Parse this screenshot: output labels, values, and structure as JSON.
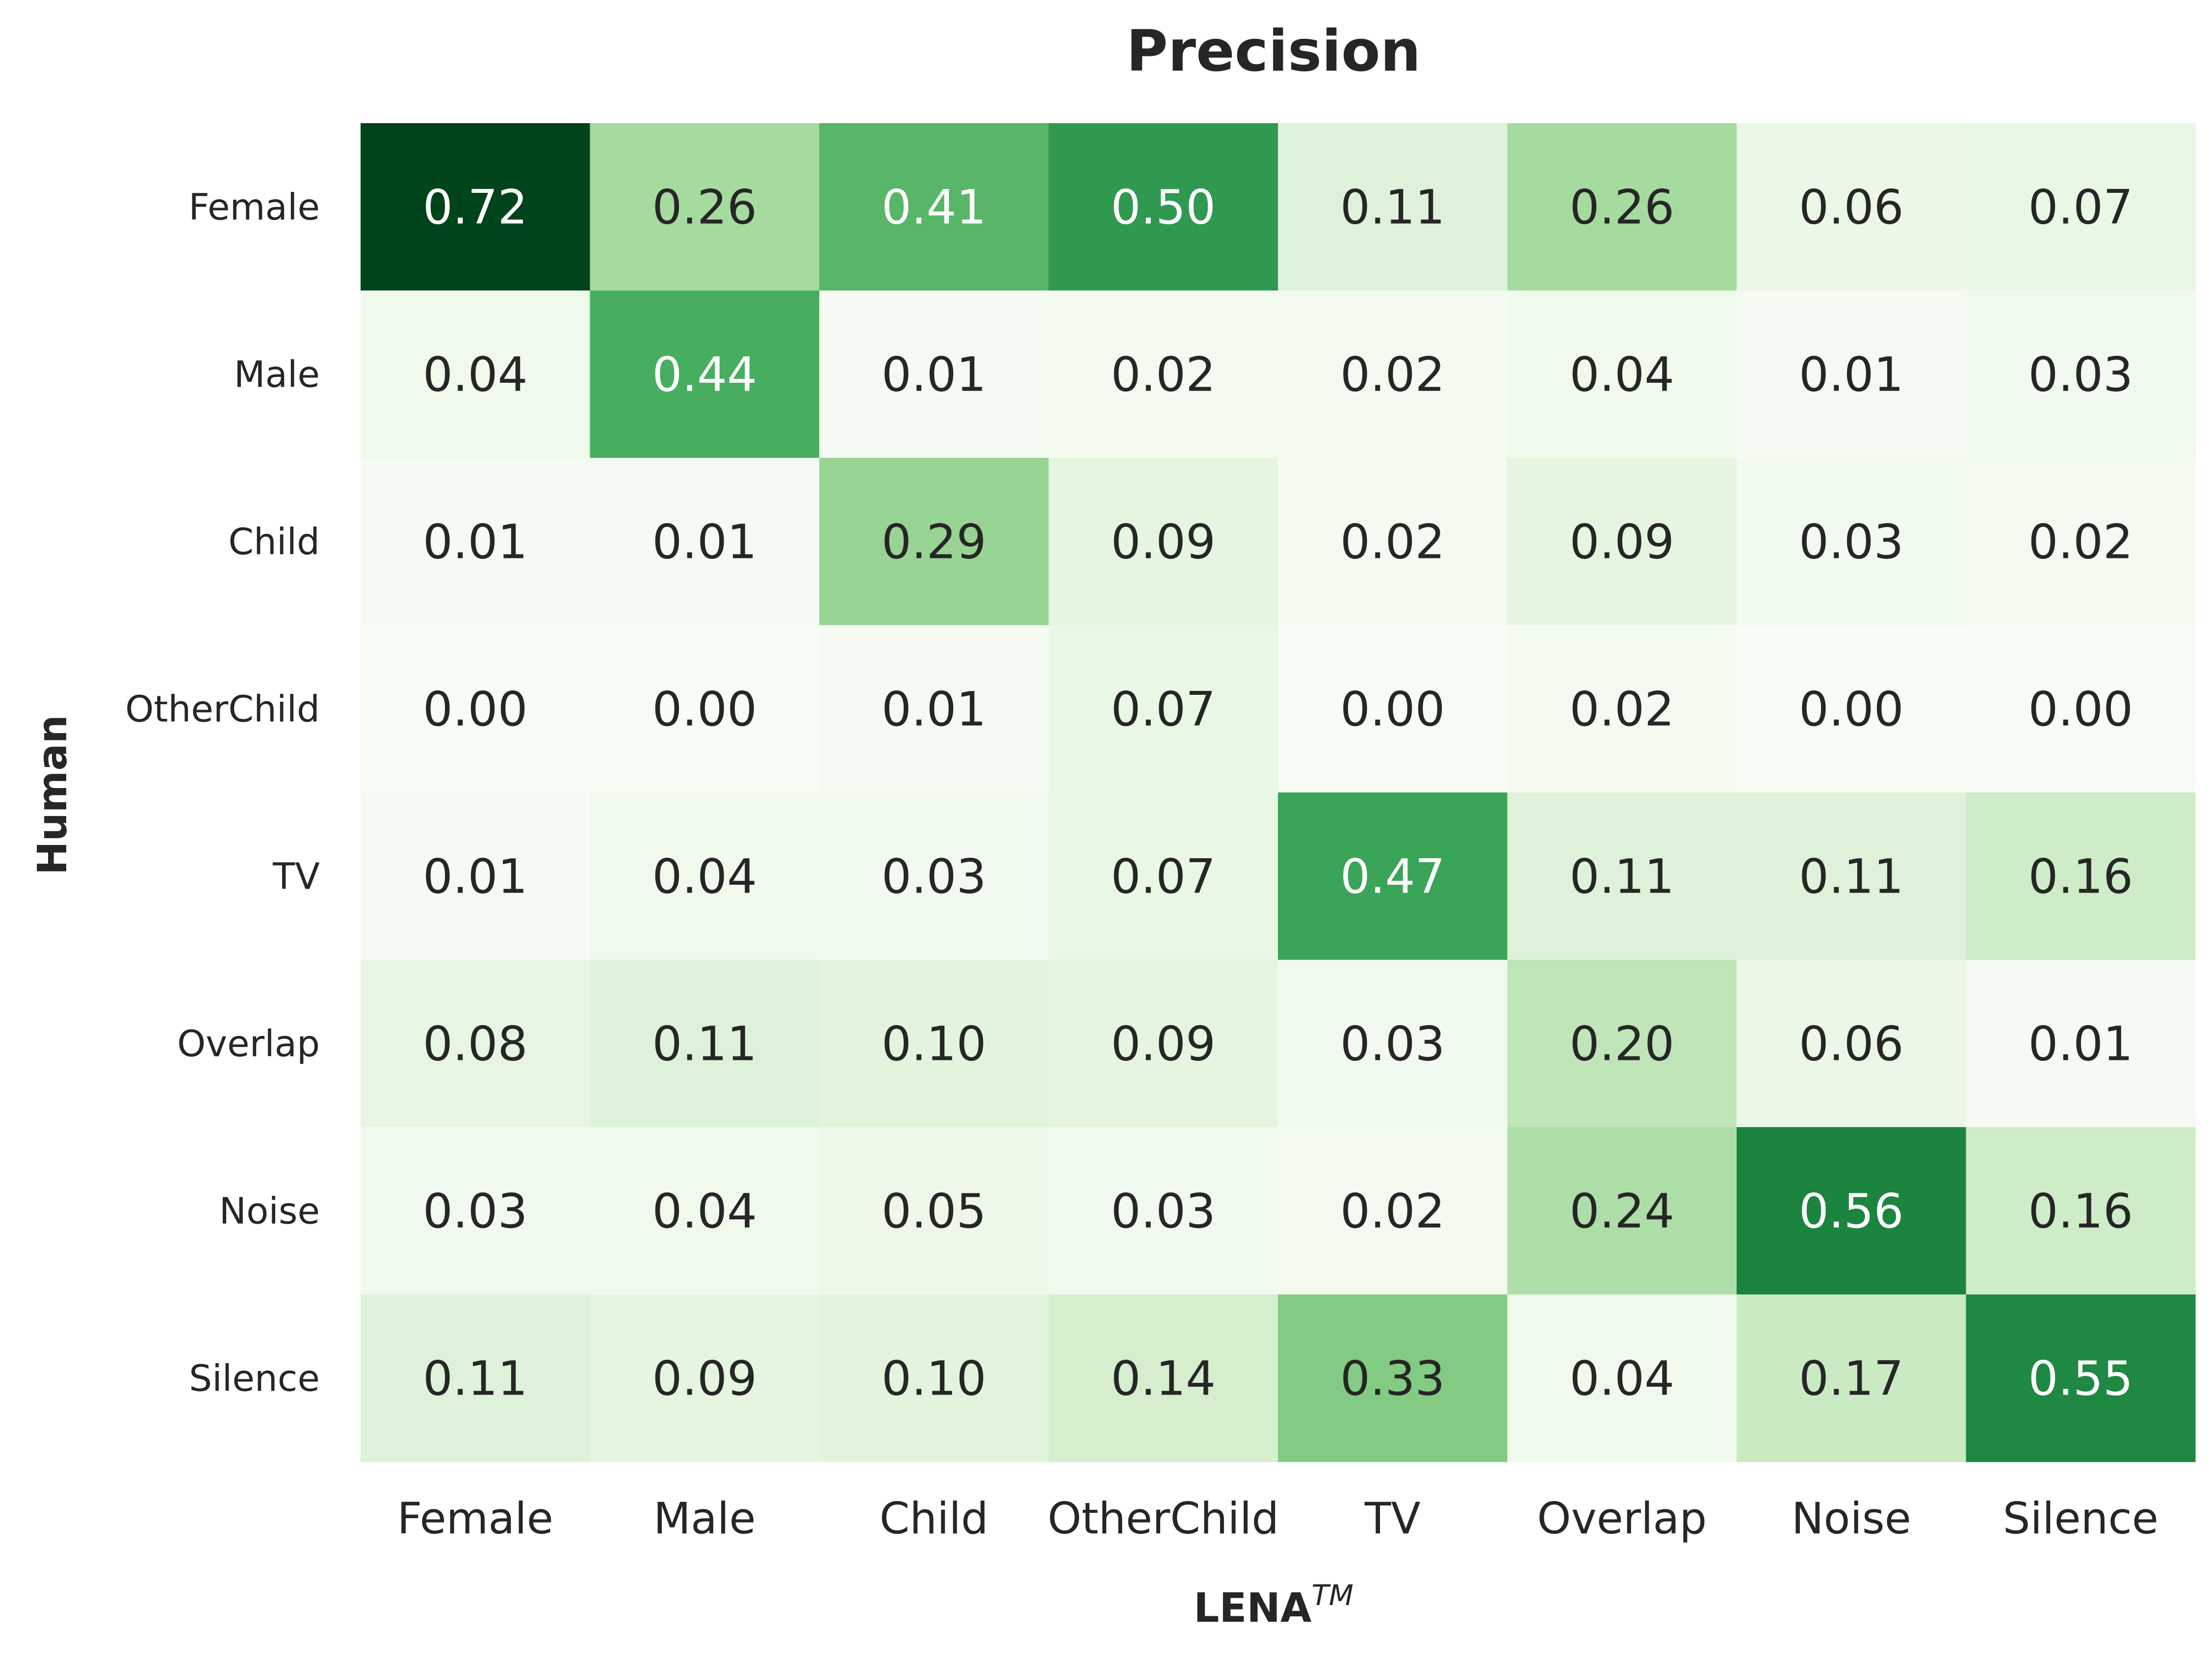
{
  "chart_data": {
    "type": "heatmap",
    "title": "Precision",
    "xlabel": "LENA",
    "xlabel_superscript": "TM",
    "ylabel": "Human",
    "x_categories": [
      "Female",
      "Male",
      "Child",
      "OtherChild",
      "TV",
      "Overlap",
      "Noise",
      "Silence"
    ],
    "y_categories": [
      "Female",
      "Male",
      "Child",
      "OtherChild",
      "TV",
      "Overlap",
      "Noise",
      "Silence"
    ],
    "values": [
      [
        0.72,
        0.26,
        0.41,
        0.5,
        0.11,
        0.26,
        0.06,
        0.07
      ],
      [
        0.04,
        0.44,
        0.01,
        0.02,
        0.02,
        0.04,
        0.01,
        0.03
      ],
      [
        0.01,
        0.01,
        0.29,
        0.09,
        0.02,
        0.09,
        0.03,
        0.02
      ],
      [
        0.0,
        0.0,
        0.01,
        0.07,
        0.0,
        0.02,
        0.0,
        0.0
      ],
      [
        0.01,
        0.04,
        0.03,
        0.07,
        0.47,
        0.11,
        0.11,
        0.16
      ],
      [
        0.08,
        0.11,
        0.1,
        0.09,
        0.03,
        0.2,
        0.06,
        0.01
      ],
      [
        0.03,
        0.04,
        0.05,
        0.03,
        0.02,
        0.24,
        0.56,
        0.16
      ],
      [
        0.11,
        0.09,
        0.1,
        0.14,
        0.33,
        0.04,
        0.17,
        0.55
      ]
    ],
    "value_format": "0.00",
    "colormap": "Greens",
    "vmin": 0.0,
    "vmax": 0.72,
    "colorbar": false,
    "grid": false,
    "colors": {
      "text_dark": "#262626",
      "text_light": "#ffffff",
      "low": "#f7fcf5",
      "high": "#00441b"
    }
  }
}
